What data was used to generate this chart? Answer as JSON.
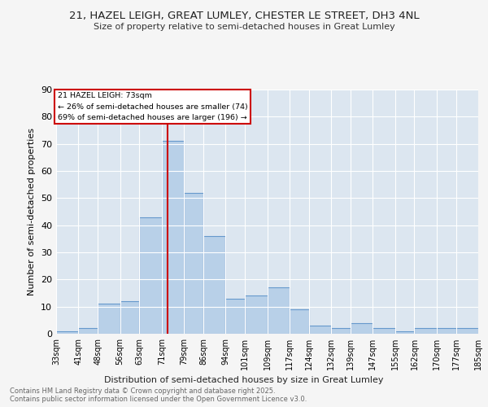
{
  "title": "21, HAZEL LEIGH, GREAT LUMLEY, CHESTER LE STREET, DH3 4NL",
  "subtitle": "Size of property relative to semi-detached houses in Great Lumley",
  "xlabel": "Distribution of semi-detached houses by size in Great Lumley",
  "ylabel": "Number of semi-detached properties",
  "bins": [
    33,
    41,
    48,
    56,
    63,
    71,
    79,
    86,
    94,
    101,
    109,
    117,
    124,
    132,
    139,
    147,
    155,
    162,
    170,
    177,
    185
  ],
  "counts": [
    1,
    2,
    11,
    12,
    43,
    71,
    52,
    36,
    13,
    14,
    17,
    9,
    3,
    2,
    4,
    2,
    1,
    2,
    2,
    2
  ],
  "bar_color": "#b8d0e8",
  "bar_edge_color": "#6699cc",
  "bg_color": "#dce6f0",
  "grid_color": "#ffffff",
  "fig_bg_color": "#f5f5f5",
  "redline_x": 73,
  "annotation_title": "21 HAZEL LEIGH: 73sqm",
  "annotation_line1": "← 26% of semi-detached houses are smaller (74)",
  "annotation_line2": "69% of semi-detached houses are larger (196) →",
  "footnote1": "Contains HM Land Registry data © Crown copyright and database right 2025.",
  "footnote2": "Contains public sector information licensed under the Open Government Licence v3.0.",
  "ylim": [
    0,
    90
  ],
  "yticks": [
    0,
    10,
    20,
    30,
    40,
    50,
    60,
    70,
    80,
    90
  ],
  "tick_labels": [
    "33sqm",
    "41sqm",
    "48sqm",
    "56sqm",
    "63sqm",
    "71sqm",
    "79sqm",
    "86sqm",
    "94sqm",
    "101sqm",
    "109sqm",
    "117sqm",
    "124sqm",
    "132sqm",
    "139sqm",
    "147sqm",
    "155sqm",
    "162sqm",
    "170sqm",
    "177sqm",
    "185sqm"
  ]
}
